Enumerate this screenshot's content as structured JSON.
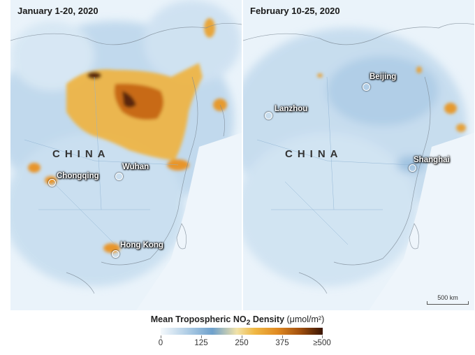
{
  "panels": {
    "left": {
      "title": "January 1-20, 2020",
      "country_label": "CHINA",
      "cities": [
        "Chongqing",
        "Wuhan",
        "Hong Kong"
      ]
    },
    "right": {
      "title": "February 10-25, 2020",
      "country_label": "CHINA",
      "cities": [
        "Beijing",
        "Lanzhou",
        "Shanghai"
      ],
      "scale_label": "500 km"
    }
  },
  "legend": {
    "title": "Mean Tropospheric NO",
    "title_sub": "2",
    "title_rest": " Density",
    "unit": "(μmol/m²)",
    "ticks": [
      "0",
      "125",
      "250",
      "375",
      "≥500"
    ],
    "colors": [
      "#f5f9fc",
      "#6fa1cc",
      "#f0b844",
      "#e08a22",
      "#3a1503"
    ]
  }
}
